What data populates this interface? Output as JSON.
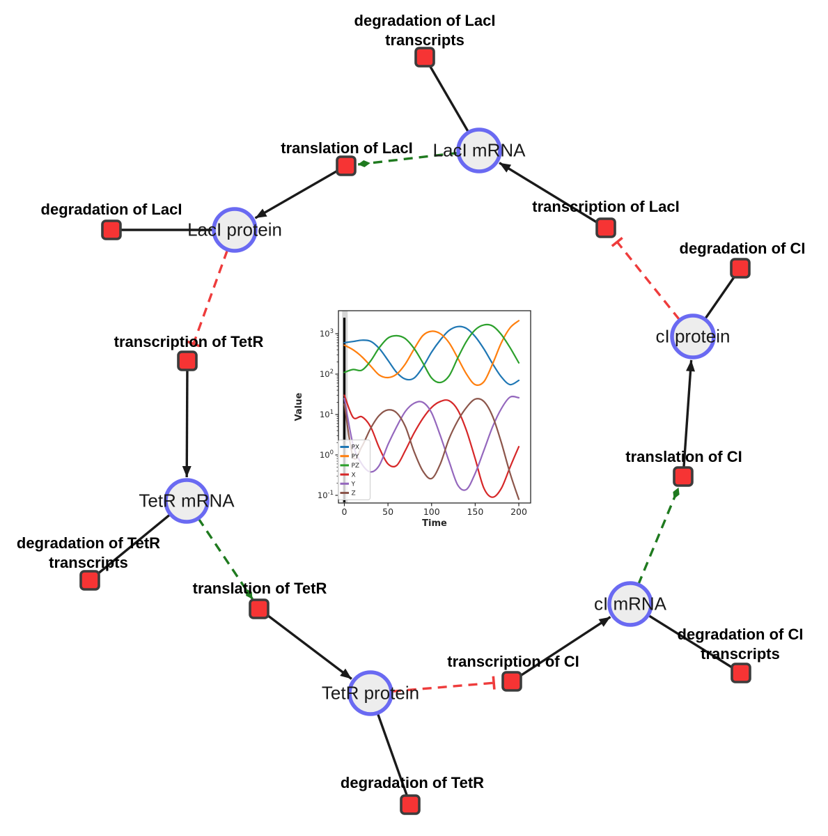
{
  "colors": {
    "species_fill": "#ededed",
    "species_border": "#6a6af2",
    "reaction_fill": "#f63434",
    "reaction_border": "#3c3c3c",
    "production_edge": "#1a1a1a",
    "consumption_edge": "#1a1a1a",
    "catalysis_edge": "#1f7a1f",
    "inhibition_edge": "#ee3c3c"
  },
  "diagram": {
    "species_nodes": [
      {
        "id": "laci_mrna",
        "label": "LacI mRNA"
      },
      {
        "id": "laci_protein",
        "label": "LacI protein"
      },
      {
        "id": "ci_protein",
        "label": "cI protein"
      },
      {
        "id": "tetr_mrna",
        "label": "TetR mRNA"
      },
      {
        "id": "tetr_protein",
        "label": "TetR protein"
      },
      {
        "id": "ci_mrna",
        "label": "cI mRNA"
      }
    ],
    "reaction_nodes": [
      {
        "id": "deg_laci_tx",
        "label": "degradation of LacI\ntranscripts"
      },
      {
        "id": "transl_laci",
        "label": "translation of LacI"
      },
      {
        "id": "tx_laci",
        "label": "transcription of LacI"
      },
      {
        "id": "deg_laci",
        "label": "degradation of LacI"
      },
      {
        "id": "deg_ci",
        "label": "degradation of CI"
      },
      {
        "id": "tx_tetr",
        "label": "transcription of TetR"
      },
      {
        "id": "transl_ci",
        "label": "translation of CI"
      },
      {
        "id": "deg_tetr_tx",
        "label": "degradation of TetR\ntranscripts"
      },
      {
        "id": "transl_tetr",
        "label": "translation of TetR"
      },
      {
        "id": "deg_ci_tx",
        "label": "degradation of CI\ntranscripts"
      },
      {
        "id": "tx_ci",
        "label": "transcription of CI"
      },
      {
        "id": "deg_tetr",
        "label": "degradation of TetR"
      }
    ],
    "edges": [
      {
        "from": "laci_mrna",
        "to": "deg_laci_tx",
        "type": "consumption"
      },
      {
        "from": "laci_mrna",
        "to": "transl_laci",
        "type": "catalysis"
      },
      {
        "from": "tx_laci",
        "to": "laci_mrna",
        "type": "production"
      },
      {
        "from": "laci_protein",
        "to": "deg_laci",
        "type": "consumption"
      },
      {
        "from": "transl_laci",
        "to": "laci_protein",
        "type": "production"
      },
      {
        "from": "laci_protein",
        "to": "tx_tetr",
        "type": "inhibition"
      },
      {
        "from": "tx_tetr",
        "to": "tetr_mrna",
        "type": "production"
      },
      {
        "from": "tetr_mrna",
        "to": "deg_tetr_tx",
        "type": "consumption"
      },
      {
        "from": "tetr_mrna",
        "to": "transl_tetr",
        "type": "catalysis"
      },
      {
        "from": "transl_tetr",
        "to": "tetr_protein",
        "type": "production"
      },
      {
        "from": "tetr_protein",
        "to": "deg_tetr",
        "type": "consumption"
      },
      {
        "from": "tetr_protein",
        "to": "tx_ci",
        "type": "inhibition"
      },
      {
        "from": "tx_ci",
        "to": "ci_mrna",
        "type": "production"
      },
      {
        "from": "ci_mrna",
        "to": "deg_ci_tx",
        "type": "consumption"
      },
      {
        "from": "ci_mrna",
        "to": "transl_ci",
        "type": "catalysis"
      },
      {
        "from": "transl_ci",
        "to": "ci_protein",
        "type": "production"
      },
      {
        "from": "ci_protein",
        "to": "deg_ci",
        "type": "consumption"
      },
      {
        "from": "ci_protein",
        "to": "tx_laci",
        "type": "inhibition"
      }
    ]
  },
  "chart_data": {
    "type": "line",
    "title": "",
    "xlabel": "Time",
    "ylabel": "Value",
    "y_scale": "log",
    "xlim": [
      -9,
      214
    ],
    "ylim_exp": [
      -1.2,
      3.6
    ],
    "x_ticks": [
      "0",
      "50",
      "100",
      "150",
      "200"
    ],
    "x_tick_values": [
      0,
      50,
      100,
      150,
      200
    ],
    "y_ticks": [
      "10^3",
      "10^2",
      "10^1",
      "10^0",
      "10^-1"
    ],
    "y_tick_exps": [
      3,
      2,
      1,
      0,
      -1
    ],
    "grid": false,
    "legend_position": "lower left",
    "annotations": [
      {
        "type": "vline",
        "x": 0,
        "color": "#000000"
      }
    ],
    "x": [
      0,
      10,
      20,
      30,
      40,
      50,
      60,
      70,
      80,
      90,
      100,
      110,
      120,
      130,
      140,
      150,
      160,
      170,
      180,
      190,
      200
    ],
    "series": [
      {
        "name": "PX",
        "color": "#1f77b4",
        "values": [
          600,
          640,
          690,
          650,
          430,
          220,
          110,
          75,
          80,
          150,
          350,
          700,
          1200,
          1500,
          1350,
          850,
          420,
          180,
          85,
          55,
          70
        ]
      },
      {
        "name": "PY",
        "color": "#ff7f0e",
        "values": [
          520,
          400,
          270,
          160,
          95,
          82,
          100,
          180,
          420,
          900,
          1150,
          1000,
          600,
          250,
          100,
          55,
          65,
          180,
          600,
          1400,
          2100
        ]
      },
      {
        "name": "PZ",
        "color": "#2ca02c",
        "values": [
          110,
          130,
          125,
          210,
          450,
          780,
          890,
          750,
          430,
          190,
          80,
          62,
          90,
          250,
          650,
          1250,
          1650,
          1550,
          950,
          450,
          190
        ]
      },
      {
        "name": "X",
        "color": "#d62728",
        "values": [
          30,
          8.5,
          8.8,
          5,
          1.5,
          0.6,
          0.55,
          1.3,
          3.5,
          8,
          15,
          21,
          22,
          13,
          4,
          0.8,
          0.15,
          0.09,
          0.15,
          0.5,
          1.6
        ]
      },
      {
        "name": "Y",
        "color": "#9467bd",
        "values": [
          25,
          1.8,
          0.6,
          0.38,
          0.55,
          1.8,
          5,
          12,
          19,
          20,
          11,
          3,
          0.7,
          0.18,
          0.14,
          0.35,
          1.3,
          5,
          14,
          27,
          26
        ]
      },
      {
        "name": "Z",
        "color": "#8c564b",
        "values": [
          18,
          0.9,
          1.6,
          4.5,
          9.5,
          13,
          11,
          5,
          1.2,
          0.4,
          0.26,
          0.6,
          2.5,
          7,
          15,
          24,
          21,
          9,
          2,
          0.35,
          0.08
        ]
      }
    ]
  }
}
